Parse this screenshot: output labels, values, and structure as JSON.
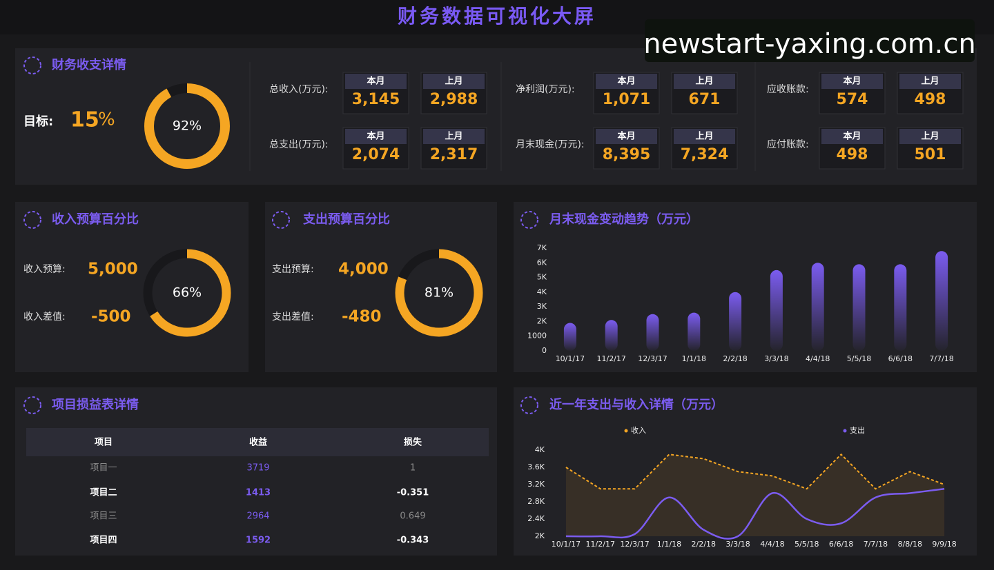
{
  "title": "财务数据可视化大屏",
  "watermark": "newstart-yaxing.com.cn",
  "summary": {
    "title": "财务收支详情",
    "target": {
      "label": "目标:",
      "value": "15",
      "unit": "%"
    },
    "metrics": [
      {
        "label": "总收入(万元):",
        "current_label": "本月",
        "current": "3,145",
        "previous_label": "上月",
        "previous": "2,988"
      },
      {
        "label": "总支出(万元):",
        "current_label": "本月",
        "current": "2,074",
        "previous_label": "上月",
        "previous": "2,317"
      },
      {
        "label": "净利润(万元):",
        "current_label": "本月",
        "current": "1,071",
        "previous_label": "上月",
        "previous": "671"
      },
      {
        "label": "月末现金(万元):",
        "current_label": "本月",
        "current": "8,395",
        "previous_label": "上月",
        "previous": "7,324"
      },
      {
        "label": "应收账款:",
        "current_label": "本月",
        "current": "574",
        "previous_label": "上月",
        "previous": "498"
      },
      {
        "label": "应付账款:",
        "current_label": "本月",
        "current": "498",
        "previous_label": "上月",
        "previous": "501"
      }
    ]
  },
  "budgets": [
    {
      "title": "收入预算百分比",
      "rows": [
        {
          "label": "收入预算:",
          "value": "5,000"
        },
        {
          "label": "收入差值:",
          "value": "-500"
        }
      ]
    },
    {
      "title": "支出预算百分比",
      "rows": [
        {
          "label": "支出预算:",
          "value": "4,000"
        },
        {
          "label": "支出差值:",
          "value": "-480"
        }
      ]
    }
  ],
  "table": {
    "title": "项目损益表详情",
    "columns": [
      "项目",
      "收益",
      "损失"
    ],
    "rows": [
      [
        "项目一",
        "3719",
        "1"
      ],
      [
        "项目二",
        "1413",
        "-0.351"
      ],
      [
        "项目三",
        "2964",
        "0.649"
      ],
      [
        "项目四",
        "1592",
        "-0.343"
      ]
    ]
  },
  "chart_data": [
    {
      "type": "donut",
      "values": [
        92
      ],
      "value_labels": [
        "92%"
      ],
      "color": "#f5a623"
    },
    {
      "type": "donut",
      "values": [
        66
      ],
      "value_labels": [
        "66%"
      ],
      "color": "#f5a623"
    },
    {
      "type": "donut",
      "values": [
        81
      ],
      "value_labels": [
        "81%"
      ],
      "color": "#f5a623"
    },
    {
      "type": "bar",
      "title": "月末现金变动趋势（万元）",
      "categories": [
        "10/1/17",
        "11/2/17",
        "12/3/17",
        "1/1/18",
        "2/2/18",
        "3/3/18",
        "4/4/18",
        "5/5/18",
        "6/6/18",
        "7/7/18"
      ],
      "values": [
        1900,
        2100,
        2500,
        2600,
        4000,
        5500,
        6000,
        5900,
        5900,
        6800
      ],
      "color": "#7b5cf0",
      "ylim": [
        0,
        7000
      ],
      "yticks": [
        0,
        1000,
        {
          "value": 2000,
          "label": "2K"
        },
        {
          "value": 3000,
          "label": "3K"
        },
        {
          "value": 4000,
          "label": "4K"
        },
        {
          "value": 5000,
          "label": "5K"
        },
        {
          "value": 6000,
          "label": "6K"
        },
        {
          "value": 7000,
          "label": "7K"
        }
      ],
      "grid": false
    },
    {
      "type": "line",
      "title": "近一年支出与收入详情（万元）",
      "categories": [
        "10/1/17",
        "11/2/17",
        "12/3/17",
        "1/1/18",
        "2/2/18",
        "3/3/18",
        "4/4/18",
        "5/5/18",
        "6/6/18",
        "7/7/18",
        "8/8/18",
        "9/9/18"
      ],
      "series": [
        {
          "name": "收入",
          "color": "#f5a623",
          "values": [
            3600,
            3100,
            3100,
            3900,
            3800,
            3500,
            3400,
            3100,
            3900,
            3100,
            3500,
            3200
          ]
        },
        {
          "name": "支出",
          "color": "#7b5cf0",
          "values": [
            2000,
            2000,
            2050,
            2900,
            2150,
            2000,
            3000,
            2400,
            2300,
            2900,
            3000,
            3100
          ]
        }
      ],
      "ylim": [
        2000,
        4000
      ],
      "yticks": [
        {
          "value": 2000,
          "label": "2K"
        },
        {
          "value": 2400,
          "label": "2.4K"
        },
        {
          "value": 2800,
          "label": "2.8K"
        },
        {
          "value": 3200,
          "label": "3.2K"
        },
        {
          "value": 3600,
          "label": "3.6K"
        },
        {
          "value": 4000,
          "label": "4K"
        }
      ],
      "legend": "top",
      "grid": false
    }
  ]
}
